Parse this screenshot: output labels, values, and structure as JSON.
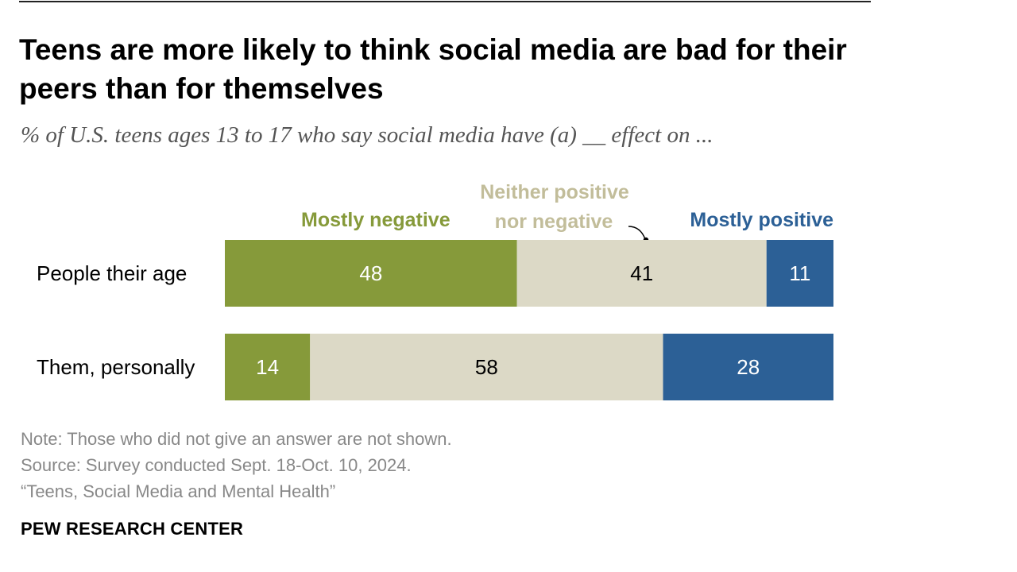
{
  "title": "Teens are more likely to think social media are bad for their peers than for themselves",
  "subtitle": "% of U.S. teens ages 13 to 17 who say social media have (a) __ effect on ...",
  "chart_data": {
    "type": "bar",
    "orientation": "horizontal",
    "stacked": true,
    "categories": [
      "People their age",
      "Them, personally"
    ],
    "series": [
      {
        "name": "Mostly negative",
        "legend_lines": [
          "Mostly negative"
        ],
        "color": "#869a3a",
        "value_color": "#ffffff",
        "values": [
          48,
          14
        ]
      },
      {
        "name": "Neither positive nor negative",
        "legend_lines": [
          "Neither positive",
          "nor negative"
        ],
        "color": "#dcd9c6",
        "value_color": "#000000",
        "values": [
          41,
          58
        ]
      },
      {
        "name": "Mostly positive",
        "legend_lines": [
          "Mostly positive"
        ],
        "color": "#2c6096",
        "value_color": "#ffffff",
        "values": [
          11,
          28
        ]
      }
    ],
    "xlim": [
      0,
      100
    ],
    "legend": "top",
    "grid": false
  },
  "footer": {
    "note": "Note: Those who did not give an answer are not shown.",
    "source": "Source: Survey conducted Sept. 18-Oct. 10, 2024.",
    "report": "“Teens, Social Media and Mental Health”"
  },
  "brand": "PEW RESEARCH CENTER",
  "colors": {
    "legend_negative": "#869a3a",
    "legend_neutral": "#c2bd9a",
    "legend_positive": "#2c6096",
    "title": "#000000",
    "subtitle": "#555555",
    "footer": "#888888"
  }
}
